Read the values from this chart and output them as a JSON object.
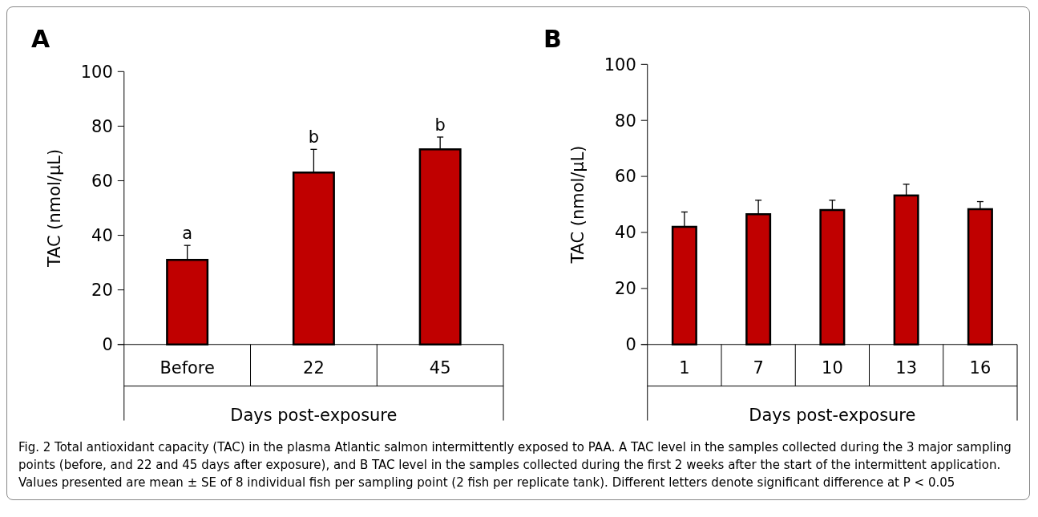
{
  "chart_data": [
    {
      "type": "bar",
      "title": "A",
      "xlabel": "Days post-exposure",
      "ylabel": "TAC (nmol/μL)",
      "categories": [
        "Before",
        "22",
        "45"
      ],
      "values": [
        31,
        63,
        71.5
      ],
      "errors": [
        [
          31,
          36.3
        ],
        [
          63,
          71.5
        ],
        [
          71.5,
          76
        ]
      ],
      "color": "#c00000",
      "ylim": [
        0,
        100
      ],
      "yticks": [
        0,
        20,
        40,
        60,
        80,
        100
      ],
      "grid": false,
      "annotations": [
        {
          "text": "a",
          "x": "Before",
          "y": 36.3
        },
        {
          "text": "b",
          "x": "22",
          "y": 71.5
        },
        {
          "text": "b",
          "x": "45",
          "y": 76
        },
        "Fig. 2 Total antioxidant capacity (TAC) in the plasma Atlantic salmon intermittently exposed to PAA. A TAC level in the samples collected during the 3 major sampling points (before, and 22 and 45 days after exposure), and B TAC level in the samples collected during the first 2 weeks after the start of the intermittent application. Values presented are mean ± SE of 8 individual fish per sampling point (2 fish per replicate tank). Different letters denote significant difference at P < 0.05"
      ]
    },
    {
      "type": "bar",
      "title": "B",
      "xlabel": "Days post-exposure",
      "ylabel": "TAC (nmol/μL)",
      "categories": [
        "1",
        "7",
        "10",
        "13",
        "16"
      ],
      "values": [
        42,
        46.5,
        48,
        53.2,
        48.3
      ],
      "errors": [
        [
          42,
          47.3
        ],
        [
          46.5,
          51.5
        ],
        [
          48,
          51.5
        ],
        [
          53.2,
          57.2
        ],
        [
          48.3,
          51
        ]
      ],
      "color": "#c00000",
      "ylim": [
        0,
        100
      ],
      "yticks": [
        0,
        20,
        40,
        60,
        80,
        100
      ],
      "grid": false
    }
  ]
}
